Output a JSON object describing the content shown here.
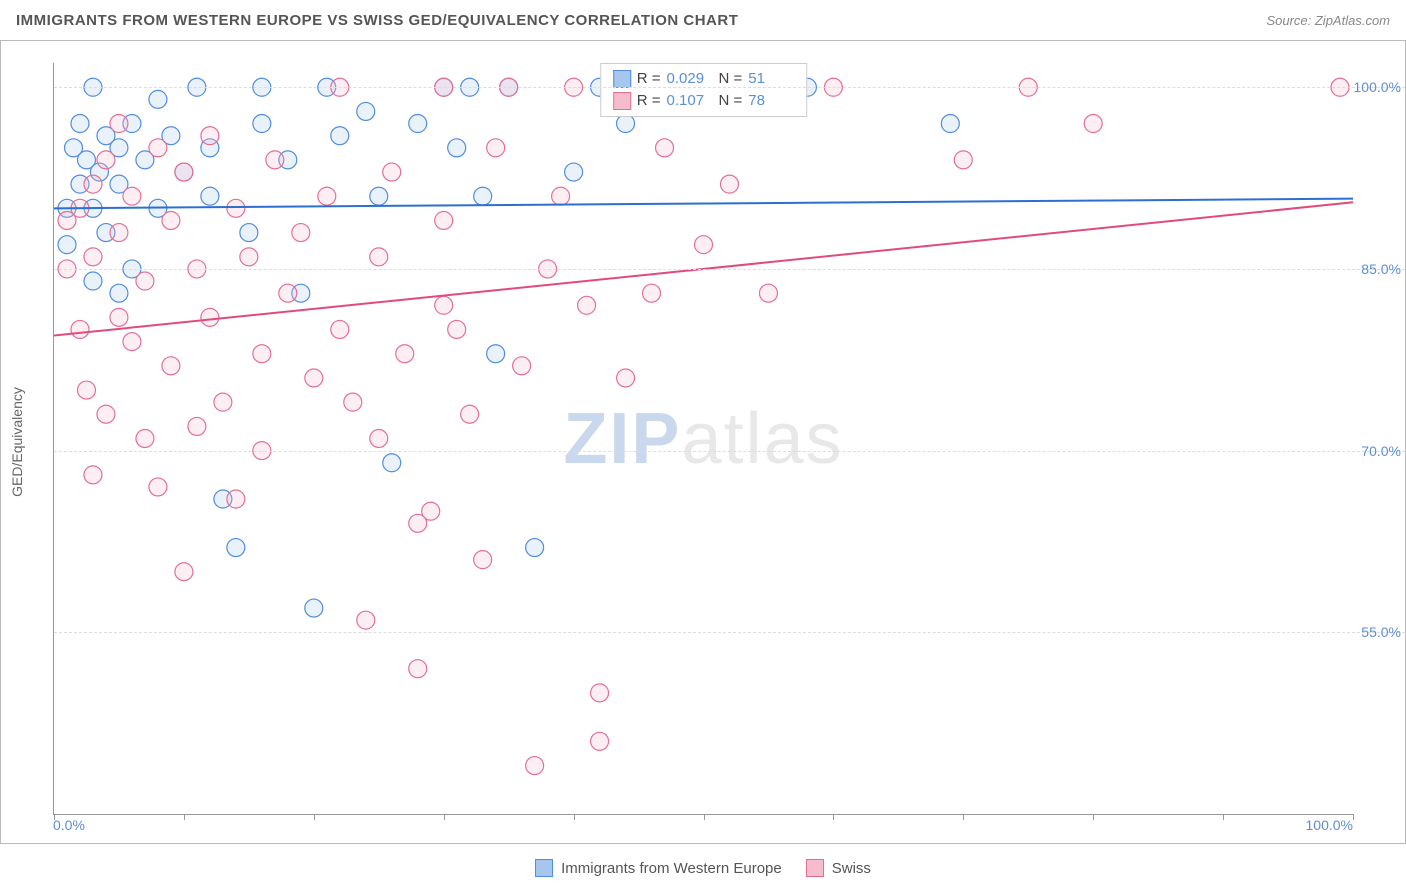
{
  "title": "IMMIGRANTS FROM WESTERN EUROPE VS SWISS GED/EQUIVALENCY CORRELATION CHART",
  "source": "Source: ZipAtlas.com",
  "watermark": {
    "zip": "ZIP",
    "atlas": "atlas"
  },
  "chart": {
    "type": "scatter",
    "y_axis_title": "GED/Equivalency",
    "xlim": [
      0,
      100
    ],
    "ylim": [
      40,
      102
    ],
    "yticks": [
      55.0,
      70.0,
      85.0,
      100.0
    ],
    "ytick_labels": [
      "55.0%",
      "70.0%",
      "85.0%",
      "100.0%"
    ],
    "xticks": [
      0,
      10,
      20,
      30,
      40,
      50,
      60,
      70,
      80,
      90,
      100
    ],
    "x_min_label": "0.0%",
    "x_max_label": "100.0%",
    "background_color": "#ffffff",
    "grid_color": "#dddddd",
    "axis_color": "#999999",
    "tick_label_color": "#5a8fd6",
    "marker_radius": 9,
    "marker_stroke_width": 1.2,
    "marker_fill_opacity": 0.25,
    "line_width": 2,
    "series": [
      {
        "name": "Immigrants from Western Europe",
        "color_stroke": "#4f8de0",
        "color_fill": "#a7c6ee",
        "R": "0.029",
        "N": "51",
        "trend": {
          "y_at_xmin": 90.0,
          "y_at_xmax": 90.8,
          "line_color": "#2d6fd1"
        },
        "points": [
          [
            1,
            90
          ],
          [
            1,
            87
          ],
          [
            1.5,
            95
          ],
          [
            2,
            92
          ],
          [
            2,
            97
          ],
          [
            2.5,
            94
          ],
          [
            3,
            100
          ],
          [
            3,
            90
          ],
          [
            3,
            84
          ],
          [
            3.5,
            93
          ],
          [
            4,
            96
          ],
          [
            4,
            88
          ],
          [
            5,
            95
          ],
          [
            5,
            83
          ],
          [
            5,
            92
          ],
          [
            6,
            97
          ],
          [
            6,
            85
          ],
          [
            7,
            94
          ],
          [
            8,
            90
          ],
          [
            8,
            99
          ],
          [
            9,
            96
          ],
          [
            10,
            93
          ],
          [
            11,
            100
          ],
          [
            12,
            91
          ],
          [
            12,
            95
          ],
          [
            13,
            66
          ],
          [
            14,
            62
          ],
          [
            15,
            88
          ],
          [
            16,
            97
          ],
          [
            16,
            100
          ],
          [
            18,
            94
          ],
          [
            19,
            83
          ],
          [
            20,
            57
          ],
          [
            21,
            100
          ],
          [
            22,
            96
          ],
          [
            24,
            98
          ],
          [
            25,
            91
          ],
          [
            26,
            69
          ],
          [
            28,
            97
          ],
          [
            30,
            100
          ],
          [
            31,
            95
          ],
          [
            32,
            100
          ],
          [
            33,
            91
          ],
          [
            34,
            78
          ],
          [
            35,
            100
          ],
          [
            37,
            62
          ],
          [
            40,
            93
          ],
          [
            42,
            100
          ],
          [
            44,
            97
          ],
          [
            58,
            100
          ],
          [
            69,
            97
          ]
        ]
      },
      {
        "name": "Swiss",
        "color_stroke": "#e56f93",
        "color_fill": "#f5bccd",
        "R": "0.107",
        "N": "78",
        "trend": {
          "y_at_xmin": 79.5,
          "y_at_xmax": 90.5,
          "line_color": "#e14b7b"
        },
        "points": [
          [
            1,
            89
          ],
          [
            1,
            85
          ],
          [
            2,
            90
          ],
          [
            2,
            80
          ],
          [
            2.5,
            75
          ],
          [
            3,
            92
          ],
          [
            3,
            86
          ],
          [
            3,
            68
          ],
          [
            4,
            94
          ],
          [
            4,
            73
          ],
          [
            5,
            88
          ],
          [
            5,
            81
          ],
          [
            5,
            97
          ],
          [
            6,
            79
          ],
          [
            6,
            91
          ],
          [
            7,
            84
          ],
          [
            7,
            71
          ],
          [
            8,
            95
          ],
          [
            8,
            67
          ],
          [
            9,
            77
          ],
          [
            9,
            89
          ],
          [
            10,
            93
          ],
          [
            10,
            60
          ],
          [
            11,
            85
          ],
          [
            11,
            72
          ],
          [
            12,
            96
          ],
          [
            12,
            81
          ],
          [
            13,
            74
          ],
          [
            14,
            90
          ],
          [
            14,
            66
          ],
          [
            15,
            86
          ],
          [
            16,
            70
          ],
          [
            16,
            78
          ],
          [
            17,
            94
          ],
          [
            18,
            83
          ],
          [
            19,
            88
          ],
          [
            20,
            76
          ],
          [
            21,
            91
          ],
          [
            22,
            80
          ],
          [
            22,
            100
          ],
          [
            23,
            74
          ],
          [
            24,
            56
          ],
          [
            25,
            86
          ],
          [
            25,
            71
          ],
          [
            26,
            93
          ],
          [
            27,
            78
          ],
          [
            28,
            52
          ],
          [
            29,
            65
          ],
          [
            30,
            89
          ],
          [
            30,
            100
          ],
          [
            31,
            80
          ],
          [
            32,
            73
          ],
          [
            33,
            61
          ],
          [
            34,
            95
          ],
          [
            35,
            100
          ],
          [
            36,
            77
          ],
          [
            37,
            44
          ],
          [
            38,
            85
          ],
          [
            39,
            91
          ],
          [
            40,
            100
          ],
          [
            41,
            82
          ],
          [
            42,
            46
          ],
          [
            42,
            50
          ],
          [
            44,
            76
          ],
          [
            45,
            100
          ],
          [
            46,
            83
          ],
          [
            47,
            95
          ],
          [
            48,
            100
          ],
          [
            50,
            87
          ],
          [
            52,
            92
          ],
          [
            55,
            83
          ],
          [
            60,
            100
          ],
          [
            70,
            94
          ],
          [
            75,
            100
          ],
          [
            80,
            97
          ],
          [
            99,
            100
          ],
          [
            28,
            64
          ],
          [
            30,
            82
          ]
        ]
      }
    ]
  },
  "top_legend": {
    "r_label": "R =",
    "n_label": "N ="
  },
  "bottom_legend": {
    "items": [
      "Immigrants from Western Europe",
      "Swiss"
    ]
  }
}
